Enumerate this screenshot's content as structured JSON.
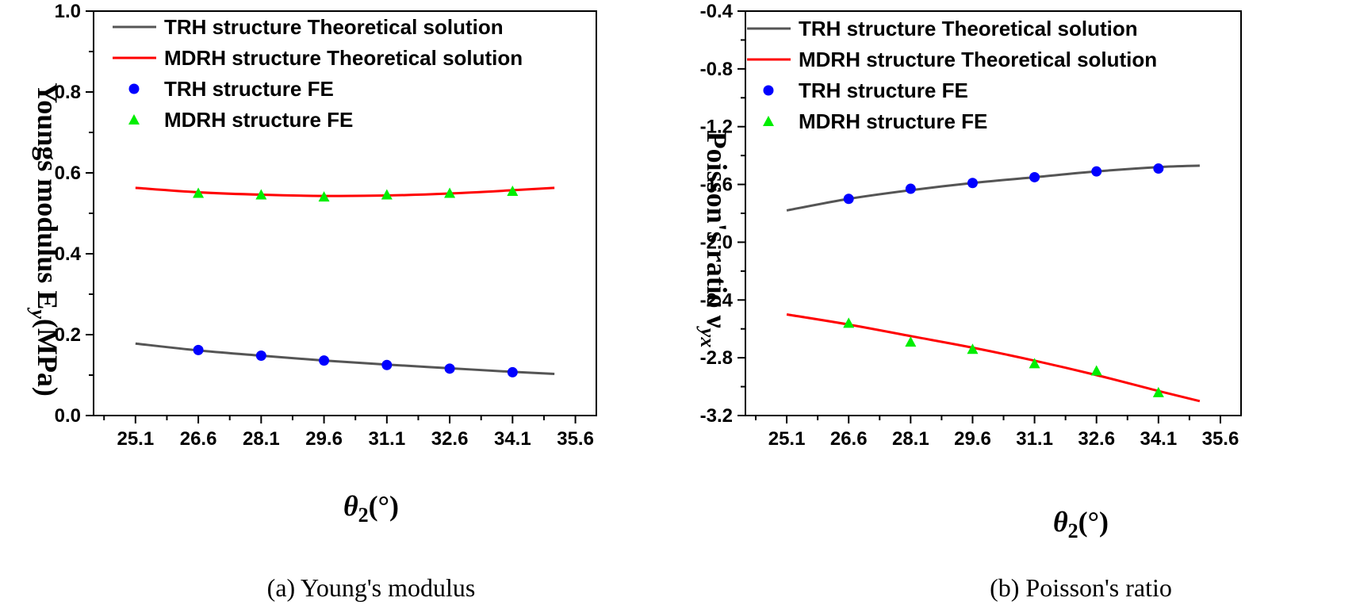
{
  "chart_data": [
    {
      "type": "line",
      "id": "a",
      "caption": "(a) Young's modulus",
      "ylabel": "Youngs modulus E",
      "ylabel_sub": "y",
      "ylabel_suffix": "(MPa)",
      "xlabel": "θ",
      "xlabel_sub": "2",
      "xlabel_suffix": "(°)",
      "xlim": [
        24.1,
        36.1
      ],
      "ylim": [
        0.0,
        1.0
      ],
      "x_ticks": [
        "25.1",
        "26.6",
        "28.1",
        "29.6",
        "31.1",
        "32.6",
        "34.1",
        "35.6"
      ],
      "y_ticks": [
        "0.0",
        "0.2",
        "0.4",
        "0.6",
        "0.8",
        "1.0"
      ],
      "grid": false,
      "legend_position": "top-left",
      "series": [
        {
          "name": "TRH structure Theoretical solution",
          "style": "line",
          "color": "#555555",
          "x": [
            25.1,
            26.6,
            28.1,
            29.6,
            31.1,
            32.6,
            34.1,
            35.1
          ],
          "y": [
            0.178,
            0.161,
            0.148,
            0.136,
            0.126,
            0.117,
            0.108,
            0.103
          ]
        },
        {
          "name": "MDRH structure Theoretical solution",
          "style": "line",
          "color": "#ff0000",
          "x": [
            25.1,
            26.6,
            28.1,
            29.6,
            31.1,
            32.6,
            34.1,
            35.1
          ],
          "y": [
            0.563,
            0.552,
            0.546,
            0.543,
            0.544,
            0.549,
            0.557,
            0.563
          ]
        },
        {
          "name": "TRH structure FE",
          "style": "circle",
          "color": "#0000ff",
          "x": [
            26.6,
            28.1,
            29.6,
            31.1,
            32.6,
            34.1
          ],
          "y": [
            0.162,
            0.148,
            0.136,
            0.125,
            0.116,
            0.107
          ]
        },
        {
          "name": "MDRH structure FE",
          "style": "triangle",
          "color": "#00ee00",
          "x": [
            26.6,
            28.1,
            29.6,
            31.1,
            32.6,
            34.1
          ],
          "y": [
            0.55,
            0.546,
            0.541,
            0.546,
            0.55,
            0.555
          ]
        }
      ]
    },
    {
      "type": "line",
      "id": "b",
      "caption": "(b) Poisson's ratio",
      "ylabel": "Poisson's ratio ν",
      "ylabel_sub": "yx",
      "ylabel_suffix": "",
      "xlabel": "θ",
      "xlabel_sub": "2",
      "xlabel_suffix": "(°)",
      "xlim": [
        24.1,
        36.1
      ],
      "ylim": [
        -3.2,
        -0.4
      ],
      "x_ticks": [
        "25.1",
        "26.6",
        "28.1",
        "29.6",
        "31.1",
        "32.6",
        "34.1",
        "35.6"
      ],
      "y_ticks": [
        "-3.2",
        "-2.8",
        "-2.4",
        "-2.0",
        "-1.6",
        "-1.2",
        "-0.8",
        "-0.4"
      ],
      "grid": false,
      "legend_position": "top-left",
      "series": [
        {
          "name": "TRH structure Theoretical solution",
          "style": "line",
          "color": "#555555",
          "x": [
            25.1,
            26.6,
            28.1,
            29.6,
            31.1,
            32.6,
            34.1,
            35.1
          ],
          "y": [
            -1.78,
            -1.7,
            -1.64,
            -1.59,
            -1.55,
            -1.51,
            -1.48,
            -1.47
          ]
        },
        {
          "name": "MDRH structure Theoretical solution",
          "style": "line",
          "color": "#ff0000",
          "x": [
            25.1,
            26.6,
            28.1,
            29.6,
            31.1,
            32.6,
            34.1,
            35.1
          ],
          "y": [
            -2.5,
            -2.57,
            -2.65,
            -2.73,
            -2.82,
            -2.92,
            -3.03,
            -3.1
          ]
        },
        {
          "name": "TRH structure FE",
          "style": "circle",
          "color": "#0000ff",
          "x": [
            26.6,
            28.1,
            29.6,
            31.1,
            32.6,
            34.1
          ],
          "y": [
            -1.7,
            -1.63,
            -1.59,
            -1.55,
            -1.51,
            -1.49
          ]
        },
        {
          "name": "MDRH structure FE",
          "style": "triangle",
          "color": "#00ee00",
          "x": [
            26.6,
            28.1,
            29.6,
            31.1,
            32.6,
            34.1
          ],
          "y": [
            -2.56,
            -2.69,
            -2.74,
            -2.84,
            -2.89,
            -3.04
          ]
        }
      ]
    }
  ]
}
